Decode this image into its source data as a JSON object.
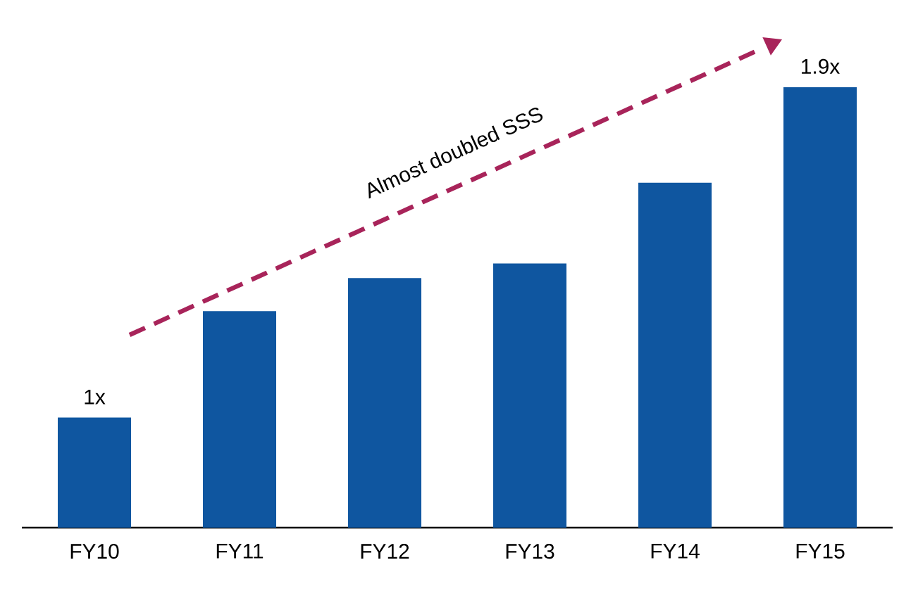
{
  "chart_data": {
    "type": "bar",
    "categories": [
      "FY10",
      "FY11",
      "FY12",
      "FY13",
      "FY14",
      "FY15"
    ],
    "values": [
      1,
      1.29,
      1.38,
      1.42,
      1.64,
      1.9
    ],
    "value_labels": [
      "1x",
      null,
      null,
      null,
      null,
      "1.9x"
    ],
    "color": "#0f56a0",
    "ylim": [
      0.7,
      1.9
    ],
    "annotations": [
      "Almost doubled SSS"
    ]
  }
}
